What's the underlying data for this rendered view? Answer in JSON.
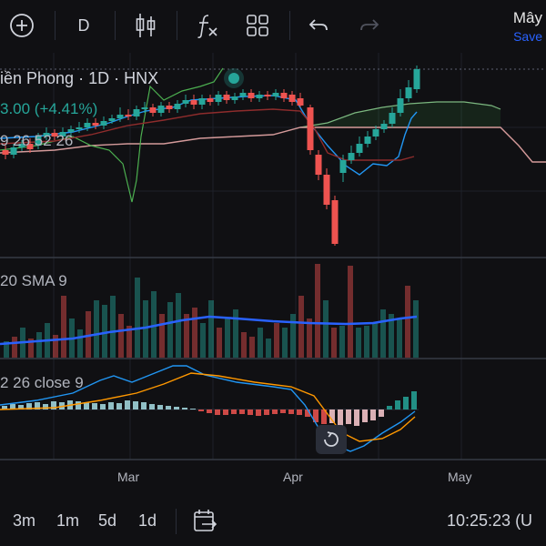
{
  "toolbar": {
    "add_icon": "plus-circle-icon",
    "interval": "D",
    "chart_type_icon": "candlestick-icon",
    "indicators_icon": "fx-icon",
    "layout_icon": "grid-layout-icon",
    "undo_icon": "undo-icon",
    "redo_icon": "redo-icon",
    "layout_name": "Mây",
    "save_label": "Save"
  },
  "legend": {
    "symbol_title": "iền Phong · 1D · HNX",
    "price_change": "3.00 (+4.41%)",
    "ichimoku": "9 26 52 26",
    "volume_sma": "20 SMA 9",
    "macd": "2 26 close 9"
  },
  "x_axis": {
    "labels": [
      "Mar",
      "Apr",
      "May"
    ]
  },
  "bottom": {
    "ranges": [
      "3m",
      "1m",
      "5d",
      "1d"
    ],
    "goto_icon": "calendar-goto-icon",
    "clock": "10:25:23 (U"
  },
  "colors": {
    "background": "#101013",
    "up": "#26a69a",
    "down": "#ef5350",
    "volume_sma_line": "#2962ff",
    "macd_line": "#2196f3",
    "signal_line": "#ff9800",
    "accent_blue": "#2962ff"
  },
  "chart_data": {
    "type": "candlestick",
    "note_series": [
      "price",
      "ichimoku",
      "volume",
      "macd"
    ],
    "price": {
      "last_change": 3.0,
      "last_change_pct": 4.41
    }
  }
}
